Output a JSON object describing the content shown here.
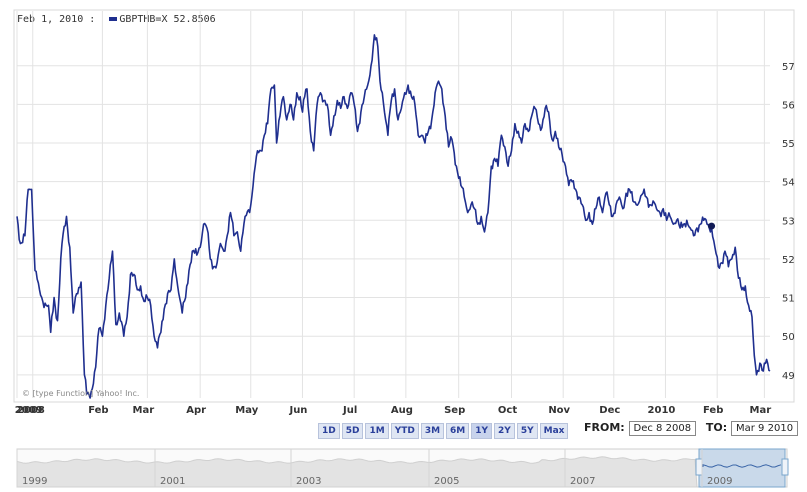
{
  "legend": {
    "date": "Feb 1, 2010 :",
    "symbol": "GBPTHB=X",
    "value": "52.8506"
  },
  "credit": "© [type Function] Yahoo! Inc.",
  "range_buttons": [
    "1D",
    "5D",
    "1M",
    "YTD",
    "3M",
    "6M",
    "1Y",
    "2Y",
    "5Y",
    "Max"
  ],
  "from_label": "FROM:",
  "from_date": "Dec 8 2008",
  "to_label": "TO:",
  "to_date": "Mar 9 2010",
  "colors": {
    "line": "#1f2f8f",
    "grid": "#e3e3e3",
    "nav_fill": "#e3e3e3",
    "nav_sel": "#c9d9ea"
  },
  "chart_data": {
    "type": "line",
    "series": [
      {
        "name": "GBPTHB=X"
      }
    ],
    "ylim": [
      48.4,
      57.9
    ],
    "yticks": [
      49,
      50,
      51,
      52,
      53,
      54,
      55,
      56,
      57
    ],
    "xticks": [
      {
        "label": "2008",
        "i": 0
      },
      {
        "label": "2009",
        "i": 14
      },
      {
        "label": "Feb",
        "i": 76
      },
      {
        "label": "Mar",
        "i": 116
      },
      {
        "label": "Apr",
        "i": 163
      },
      {
        "label": "May",
        "i": 208
      },
      {
        "label": "Jun",
        "i": 254
      },
      {
        "label": "Jul",
        "i": 300
      },
      {
        "label": "Aug",
        "i": 346
      },
      {
        "label": "Sep",
        "i": 393
      },
      {
        "label": "Oct",
        "i": 440
      },
      {
        "label": "Nov",
        "i": 486
      },
      {
        "label": "Dec",
        "i": 531
      },
      {
        "label": "2010",
        "i": 577
      },
      {
        "label": "Feb",
        "i": 623
      },
      {
        "label": "Mar",
        "i": 665
      }
    ],
    "marker": {
      "i": 618,
      "value": 52.8506
    },
    "knots": [
      [
        0,
        53.1
      ],
      [
        3,
        52.4
      ],
      [
        7,
        52.6
      ],
      [
        10,
        53.8
      ],
      [
        13,
        53.8
      ],
      [
        16,
        51.7
      ],
      [
        20,
        51.2
      ],
      [
        23,
        50.9
      ],
      [
        28,
        50.8
      ],
      [
        30,
        50.1
      ],
      [
        33,
        51.0
      ],
      [
        36,
        50.4
      ],
      [
        40,
        52.4
      ],
      [
        44,
        53.1
      ],
      [
        47,
        52.3
      ],
      [
        50,
        50.6
      ],
      [
        53,
        51.1
      ],
      [
        57,
        51.4
      ],
      [
        60,
        49.0
      ],
      [
        62,
        48.5
      ],
      [
        65,
        48.4
      ],
      [
        70,
        49.2
      ],
      [
        73,
        50.2
      ],
      [
        76,
        50.0
      ],
      [
        79,
        50.8
      ],
      [
        82,
        51.5
      ],
      [
        85,
        52.2
      ],
      [
        88,
        50.3
      ],
      [
        91,
        50.6
      ],
      [
        95,
        50.0
      ],
      [
        98,
        50.5
      ],
      [
        101,
        51.6
      ],
      [
        104,
        51.6
      ],
      [
        107,
        51.2
      ],
      [
        110,
        51.3
      ],
      [
        113,
        50.9
      ],
      [
        116,
        51.0
      ],
      [
        119,
        50.8
      ],
      [
        122,
        50.0
      ],
      [
        125,
        49.7
      ],
      [
        128,
        50.1
      ],
      [
        131,
        50.7
      ],
      [
        134,
        51.1
      ],
      [
        137,
        51.2
      ],
      [
        140,
        52.0
      ],
      [
        142,
        51.5
      ],
      [
        144,
        51.1
      ],
      [
        147,
        50.6
      ],
      [
        150,
        51.0
      ],
      [
        153,
        51.7
      ],
      [
        156,
        52.2
      ],
      [
        160,
        52.1
      ],
      [
        163,
        52.3
      ],
      [
        166,
        52.9
      ],
      [
        169,
        52.8
      ],
      [
        172,
        52.0
      ],
      [
        175,
        51.8
      ],
      [
        178,
        51.9
      ],
      [
        181,
        52.4
      ],
      [
        184,
        52.2
      ],
      [
        187,
        52.6
      ],
      [
        190,
        53.2
      ],
      [
        193,
        52.6
      ],
      [
        196,
        52.7
      ],
      [
        199,
        52.2
      ],
      [
        203,
        53.1
      ],
      [
        208,
        53.4
      ],
      [
        211,
        54.2
      ],
      [
        214,
        54.8
      ],
      [
        217,
        54.8
      ],
      [
        220,
        55.2
      ],
      [
        223,
        55.5
      ],
      [
        226,
        56.4
      ],
      [
        229,
        56.5
      ],
      [
        231,
        55.0
      ],
      [
        234,
        55.7
      ],
      [
        237,
        56.2
      ],
      [
        240,
        55.6
      ],
      [
        243,
        56.0
      ],
      [
        246,
        55.6
      ],
      [
        249,
        56.3
      ],
      [
        252,
        56.2
      ],
      [
        254,
        55.8
      ],
      [
        256,
        56.2
      ],
      [
        258,
        56.4
      ],
      [
        261,
        55.3
      ],
      [
        264,
        54.8
      ],
      [
        267,
        56.0
      ],
      [
        270,
        56.3
      ],
      [
        273,
        56.1
      ],
      [
        276,
        56.0
      ],
      [
        279,
        55.2
      ],
      [
        282,
        55.7
      ],
      [
        285,
        56.1
      ],
      [
        288,
        55.9
      ],
      [
        291,
        56.2
      ],
      [
        294,
        55.9
      ],
      [
        297,
        56.3
      ],
      [
        300,
        56.0
      ],
      [
        303,
        55.3
      ],
      [
        306,
        55.8
      ],
      [
        309,
        56.2
      ],
      [
        312,
        56.5
      ],
      [
        315,
        57.0
      ],
      [
        318,
        57.8
      ],
      [
        321,
        57.5
      ],
      [
        323,
        56.6
      ],
      [
        325,
        56.3
      ],
      [
        327,
        55.8
      ],
      [
        330,
        55.2
      ],
      [
        333,
        56.1
      ],
      [
        336,
        56.4
      ],
      [
        339,
        55.6
      ],
      [
        342,
        55.9
      ],
      [
        345,
        56.3
      ],
      [
        348,
        56.5
      ],
      [
        351,
        56.2
      ],
      [
        354,
        56.0
      ],
      [
        357,
        55.2
      ],
      [
        360,
        55.2
      ],
      [
        363,
        55.0
      ],
      [
        366,
        55.3
      ],
      [
        369,
        55.6
      ],
      [
        372,
        56.3
      ],
      [
        375,
        56.6
      ],
      [
        378,
        56.4
      ],
      [
        381,
        55.7
      ],
      [
        384,
        54.9
      ],
      [
        387,
        55.1
      ],
      [
        391,
        54.4
      ],
      [
        395,
        53.9
      ],
      [
        398,
        53.6
      ],
      [
        401,
        53.2
      ],
      [
        404,
        53.4
      ],
      [
        407,
        53.3
      ],
      [
        410,
        52.9
      ],
      [
        413,
        53.1
      ],
      [
        416,
        52.7
      ],
      [
        419,
        53.2
      ],
      [
        422,
        54.4
      ],
      [
        425,
        54.6
      ],
      [
        428,
        54.4
      ],
      [
        431,
        55.2
      ],
      [
        434,
        54.9
      ],
      [
        437,
        54.4
      ],
      [
        440,
        54.8
      ],
      [
        443,
        55.5
      ],
      [
        446,
        55.3
      ],
      [
        449,
        55.0
      ],
      [
        452,
        55.5
      ],
      [
        455,
        55.3
      ],
      [
        458,
        55.7
      ],
      [
        461,
        55.9
      ],
      [
        464,
        55.5
      ],
      [
        467,
        55.4
      ],
      [
        470,
        55.9
      ],
      [
        473,
        55.8
      ],
      [
        476,
        55.1
      ],
      [
        479,
        55.3
      ],
      [
        482,
        54.9
      ],
      [
        485,
        54.7
      ],
      [
        488,
        54.4
      ],
      [
        491,
        53.9
      ],
      [
        494,
        54.0
      ],
      [
        497,
        53.8
      ],
      [
        500,
        53.6
      ],
      [
        503,
        53.4
      ],
      [
        506,
        53.0
      ],
      [
        509,
        53.2
      ],
      [
        512,
        52.9
      ],
      [
        515,
        53.3
      ],
      [
        518,
        53.6
      ],
      [
        521,
        53.2
      ],
      [
        524,
        53.7
      ],
      [
        527,
        53.4
      ],
      [
        530,
        53.1
      ],
      [
        533,
        53.4
      ],
      [
        536,
        53.6
      ],
      [
        539,
        53.3
      ],
      [
        542,
        53.7
      ],
      [
        545,
        53.8
      ],
      [
        548,
        53.5
      ],
      [
        551,
        53.4
      ],
      [
        554,
        53.5
      ],
      [
        557,
        53.7
      ],
      [
        560,
        53.6
      ],
      [
        563,
        53.4
      ],
      [
        566,
        53.5
      ],
      [
        569,
        53.3
      ],
      [
        572,
        53.2
      ],
      [
        575,
        53.3
      ],
      [
        578,
        53.0
      ],
      [
        581,
        53.1
      ],
      [
        584,
        52.9
      ],
      [
        587,
        53.0
      ],
      [
        590,
        52.8
      ],
      [
        593,
        52.9
      ],
      [
        596,
        53.0
      ],
      [
        599,
        52.8
      ],
      [
        602,
        52.6
      ],
      [
        605,
        52.8
      ],
      [
        608,
        52.9
      ],
      [
        611,
        53.0
      ],
      [
        614,
        52.9
      ],
      [
        618,
        52.8
      ],
      [
        621,
        52.3
      ],
      [
        624,
        51.8
      ],
      [
        627,
        51.9
      ],
      [
        630,
        52.2
      ],
      [
        633,
        51.8
      ],
      [
        636,
        52.0
      ],
      [
        639,
        52.3
      ],
      [
        642,
        51.5
      ],
      [
        645,
        51.2
      ],
      [
        648,
        51.3
      ],
      [
        651,
        50.8
      ],
      [
        654,
        50.5
      ],
      [
        656,
        49.5
      ],
      [
        658,
        49.0
      ],
      [
        661,
        49.3
      ],
      [
        664,
        49.1
      ],
      [
        667,
        49.4
      ],
      [
        670,
        49.1
      ]
    ]
  },
  "navigator": {
    "years": [
      "1999",
      "2001",
      "2003",
      "2005",
      "2007",
      "2009"
    ]
  }
}
